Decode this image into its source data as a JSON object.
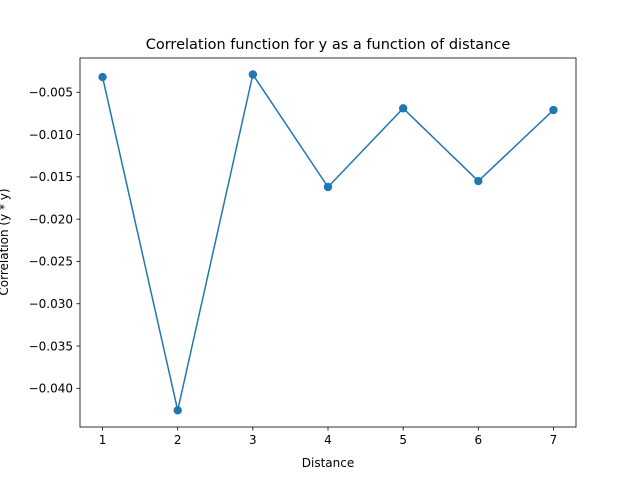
{
  "chart_data": {
    "type": "line",
    "title": "Correlation function for y as a function of distance",
    "xlabel": "Distance",
    "ylabel": "Correlation (y * y)",
    "x": [
      1,
      2,
      3,
      4,
      5,
      6,
      7
    ],
    "series": [
      {
        "values": [
          -0.0032,
          -0.0426,
          -0.0029,
          -0.0162,
          -0.0069,
          -0.0155,
          -0.0071
        ],
        "color": "#1f77b4",
        "marker": "circle"
      }
    ],
    "xticks": [
      1,
      2,
      3,
      4,
      5,
      6,
      7
    ],
    "xtick_labels": [
      "1",
      "2",
      "3",
      "4",
      "5",
      "6",
      "7"
    ],
    "yticks": [
      -0.005,
      -0.01,
      -0.015,
      -0.02,
      -0.025,
      -0.03,
      -0.035,
      -0.04
    ],
    "ytick_labels": [
      "−0.005",
      "−0.010",
      "−0.015",
      "−0.020",
      "−0.025",
      "−0.030",
      "−0.035",
      "−0.040"
    ],
    "xlim": [
      0.7,
      7.3
    ],
    "ylim": [
      -0.04457,
      -0.00095
    ],
    "grid": false
  }
}
